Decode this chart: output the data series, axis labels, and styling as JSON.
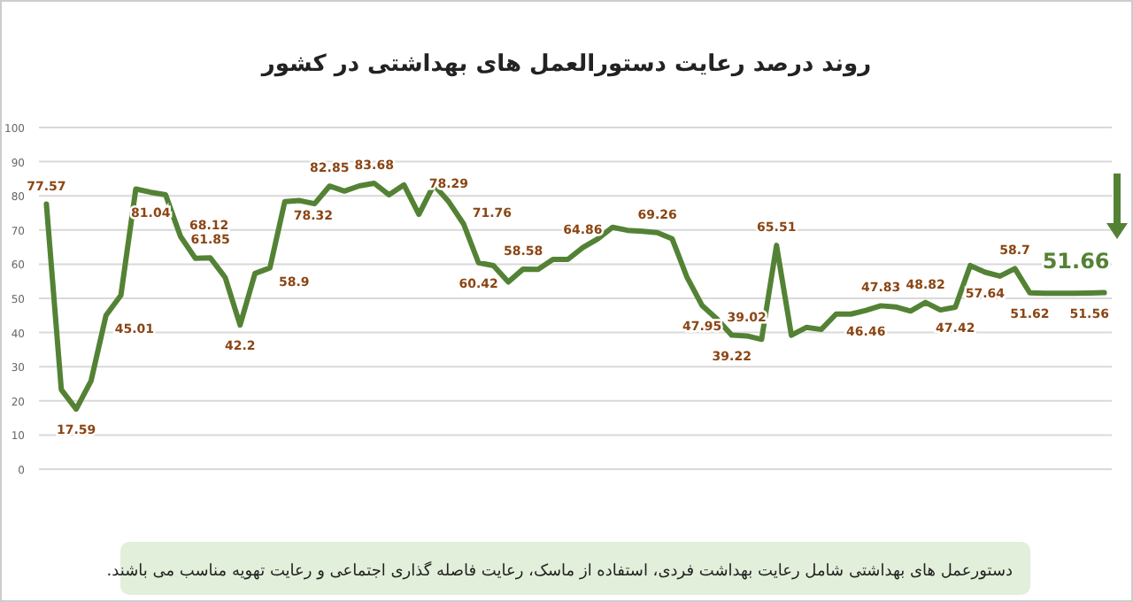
{
  "chart_data": {
    "type": "line",
    "title": "روند درصد رعایت دستورالعمل های بهداشتی در کشور",
    "categories": [
      null,
      null,
      null,
      null,
      null,
      null,
      null,
      null,
      null,
      null,
      null,
      null,
      null,
      null,
      null,
      null,
      null,
      null,
      null,
      null,
      null,
      null,
      null,
      null,
      null,
      null,
      null,
      null,
      null,
      null,
      null,
      null,
      null,
      null,
      null,
      null,
      null,
      null,
      null,
      null,
      null,
      null,
      null,
      null,
      null,
      null,
      null,
      null,
      null,
      null,
      null,
      null,
      null,
      null,
      null,
      null,
      null,
      null,
      null,
      null,
      null,
      null,
      null,
      null,
      null,
      null,
      null,
      null,
      null,
      null,
      null,
      null
    ],
    "series": [
      {
        "color": "#548235",
        "values": [
          77.57,
          23.3,
          17.59,
          25.9,
          45.01,
          50.9,
          82.0,
          81.04,
          80.3,
          68.12,
          61.7,
          61.85,
          56.1,
          42.2,
          57.3,
          58.9,
          78.32,
          78.6,
          77.7,
          82.85,
          81.4,
          82.9,
          83.68,
          80.3,
          83.2,
          74.6,
          83.2,
          78.29,
          71.76,
          60.42,
          59.6,
          54.8,
          58.58,
          58.5,
          61.4,
          61.4,
          64.86,
          67.4,
          70.8,
          69.9,
          69.6,
          69.26,
          67.4,
          56.1,
          47.95,
          44.0,
          39.22,
          39.02,
          38.0,
          65.51,
          39.2,
          41.5,
          40.9,
          45.4,
          45.4,
          46.46,
          47.83,
          47.5,
          46.3,
          48.82,
          46.6,
          47.42,
          59.6,
          57.64,
          56.5,
          58.7,
          51.62,
          51.5,
          51.5,
          51.5,
          51.56,
          51.66
        ],
        "value_labels": [
          "77.57",
          null,
          "17.59",
          null,
          "45.01",
          null,
          null,
          "81.04",
          null,
          "68.12",
          null,
          "61.85",
          null,
          "42.2",
          null,
          "58.9",
          "78.32",
          null,
          null,
          "82.85",
          null,
          null,
          "83.68",
          null,
          null,
          null,
          null,
          "78.29",
          "71.76",
          "60.42",
          null,
          null,
          "58.58",
          null,
          null,
          null,
          "64.86",
          null,
          null,
          null,
          null,
          "69.26",
          null,
          null,
          "47.95",
          null,
          "39.22",
          "39.02",
          null,
          "65.51",
          null,
          null,
          null,
          null,
          null,
          "46.46",
          "47.83",
          null,
          null,
          "48.82",
          null,
          "47.42",
          null,
          "57.64",
          null,
          "58.7",
          "51.62",
          null,
          null,
          null,
          "51.56",
          "51.66"
        ]
      }
    ],
    "ylim": [
      0,
      100
    ],
    "yticks": [
      0,
      10,
      20,
      30,
      40,
      50,
      60,
      70,
      80,
      90,
      100
    ],
    "grid": "y",
    "marker": "none",
    "line_style": "solid",
    "annotations": [
      "دستورعمل های بهداشتی شامل رعایت بهداشت فردی، استفاده از ماسک، رعایت فاصله گذاری اجتماعی و رعایت تهویه مناسب می باشند."
    ]
  }
}
